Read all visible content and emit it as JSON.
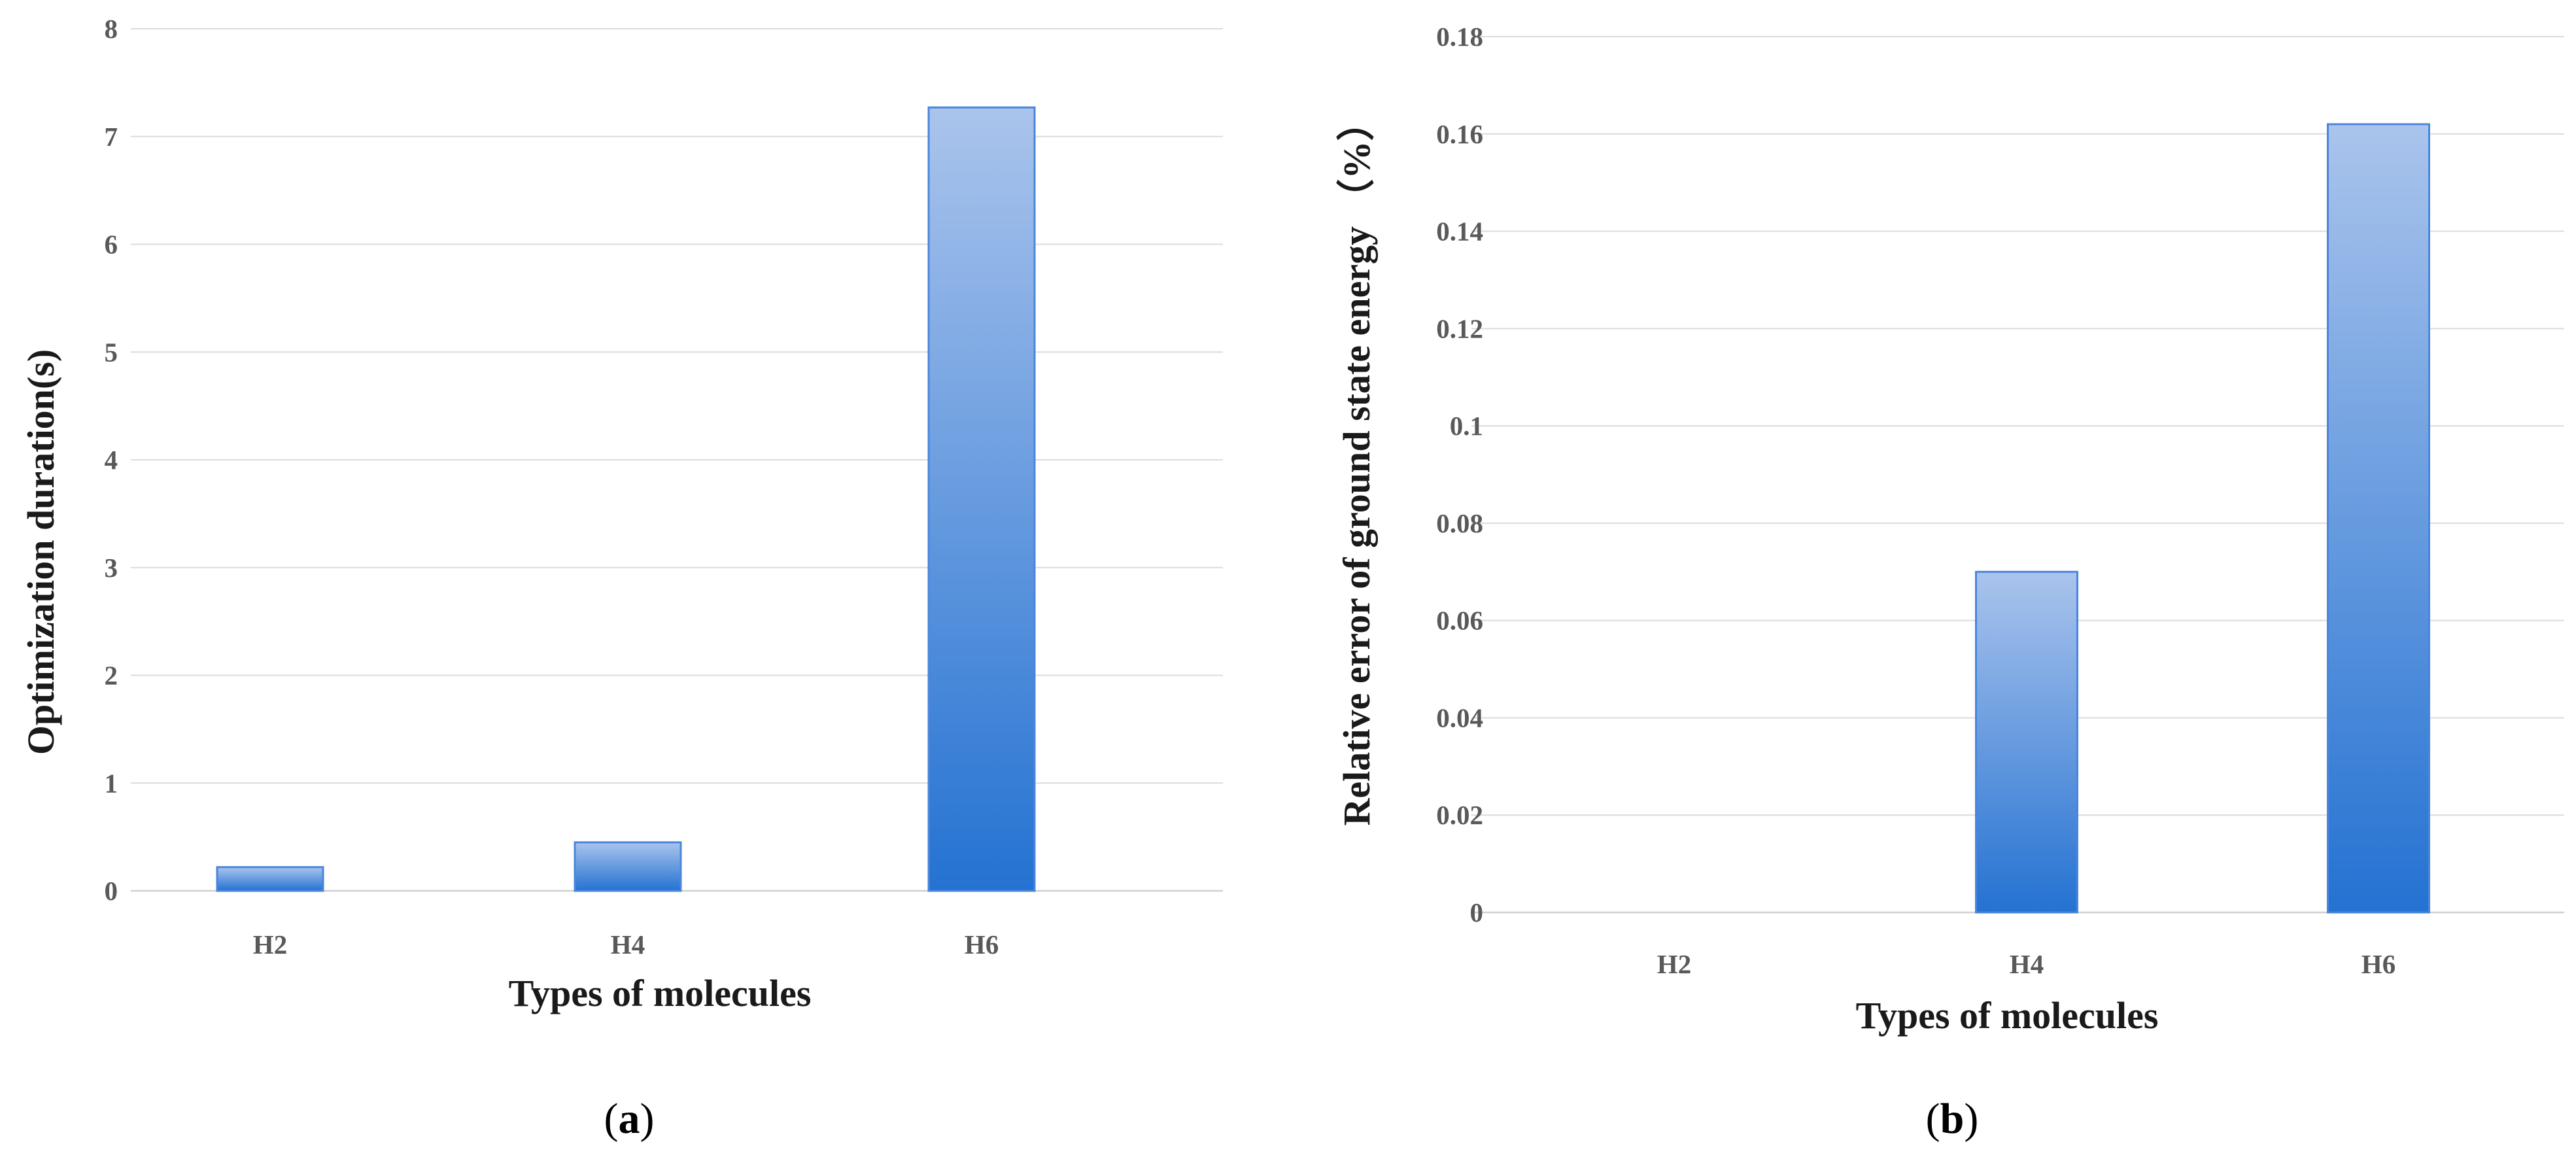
{
  "chart_data": [
    {
      "type": "bar",
      "categories": [
        "H2",
        "H4",
        "H6"
      ],
      "values": [
        0.22,
        0.45,
        7.27
      ],
      "xlabel": "Types of molecules",
      "ylabel": "Optimization duration(s)",
      "ylim": [
        0,
        8
      ],
      "yticks": [
        "0",
        "1",
        "2",
        "3",
        "4",
        "5",
        "6",
        "7",
        "8"
      ],
      "grid": true,
      "bar_color_top": "#aac4ec",
      "bar_color_bottom": "#2472d2",
      "panel_label": {
        "open": "(",
        "letter": "a",
        "close": ")"
      }
    },
    {
      "type": "bar",
      "categories": [
        "H2",
        "H4",
        "H6"
      ],
      "values": [
        0,
        0.07,
        0.162
      ],
      "xlabel": "Types of molecules",
      "ylabel": "Relative error of ground state energy （%）",
      "ylim": [
        0,
        0.18
      ],
      "yticks": [
        "0",
        "0.02",
        "0.04",
        "0.06",
        "0.08",
        "0.1",
        "0.12",
        "0.14",
        "0.16",
        "0.18"
      ],
      "grid": true,
      "bar_color_top": "#aac4ec",
      "bar_color_bottom": "#2472d2",
      "panel_label": {
        "open": "(",
        "letter": "b",
        "close": ")"
      }
    }
  ]
}
